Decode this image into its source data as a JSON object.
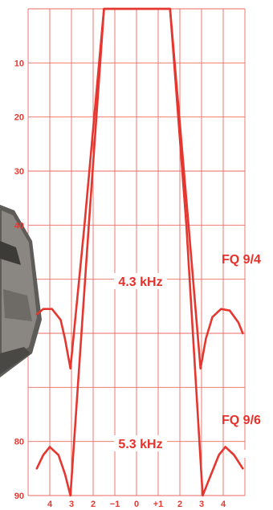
{
  "chart_data": {
    "type": "line",
    "title": "",
    "xlabel": "",
    "ylabel": "",
    "x_ticks": [
      "4",
      "3",
      "2",
      "−1",
      "0",
      "+1",
      "2",
      "3",
      "4"
    ],
    "y_ticks": [
      "10",
      "20",
      "30",
      "40",
      "",
      "",
      "",
      "80",
      "90"
    ],
    "ylim": [
      0,
      90
    ],
    "y_inverted": true,
    "grid": true,
    "colors": {
      "curve": "#e5372f",
      "grid": "#ec6a62",
      "text": "#e23a32"
    },
    "series": [
      {
        "name": "FQ 9/4",
        "bandwidth_label": "4.3 kHz",
        "points": [
          {
            "x": -4.6,
            "y": 56.5
          },
          {
            "x": -4.3,
            "y": 55.5
          },
          {
            "x": -3.9,
            "y": 55.5
          },
          {
            "x": -3.5,
            "y": 57.5
          },
          {
            "x": -3.3,
            "y": 61
          },
          {
            "x": -3.05,
            "y": 66.5
          },
          {
            "x": -2.4,
            "y": 40
          },
          {
            "x": -1.5,
            "y": 0
          },
          {
            "x": -0.8,
            "y": 0
          },
          {
            "x": 0,
            "y": 0
          },
          {
            "x": 0.8,
            "y": 0
          },
          {
            "x": 1.55,
            "y": 0
          },
          {
            "x": 2.4,
            "y": 40
          },
          {
            "x": 2.95,
            "y": 66.5
          },
          {
            "x": 3.2,
            "y": 61
          },
          {
            "x": 3.5,
            "y": 57
          },
          {
            "x": 3.9,
            "y": 55.5
          },
          {
            "x": 4.3,
            "y": 55.8
          },
          {
            "x": 4.7,
            "y": 58
          },
          {
            "x": 4.9,
            "y": 60
          }
        ]
      },
      {
        "name": "FQ 9/6",
        "bandwidth_label": "5.3 kHz",
        "points": [
          {
            "x": -4.6,
            "y": 85
          },
          {
            "x": -4.3,
            "y": 82.5
          },
          {
            "x": -4.0,
            "y": 81
          },
          {
            "x": -3.6,
            "y": 82.5
          },
          {
            "x": -3.3,
            "y": 86
          },
          {
            "x": -3.05,
            "y": 90
          },
          {
            "x": -2.2,
            "y": 40
          },
          {
            "x": -1.5,
            "y": 0
          },
          {
            "x": 0,
            "y": 0
          },
          {
            "x": 1.55,
            "y": 0
          },
          {
            "x": 2.3,
            "y": 40
          },
          {
            "x": 3.05,
            "y": 90
          },
          {
            "x": 3.4,
            "y": 86.5
          },
          {
            "x": 3.8,
            "y": 82.5
          },
          {
            "x": 4.1,
            "y": 81
          },
          {
            "x": 4.5,
            "y": 82.5
          },
          {
            "x": 4.9,
            "y": 85
          }
        ]
      }
    ]
  }
}
